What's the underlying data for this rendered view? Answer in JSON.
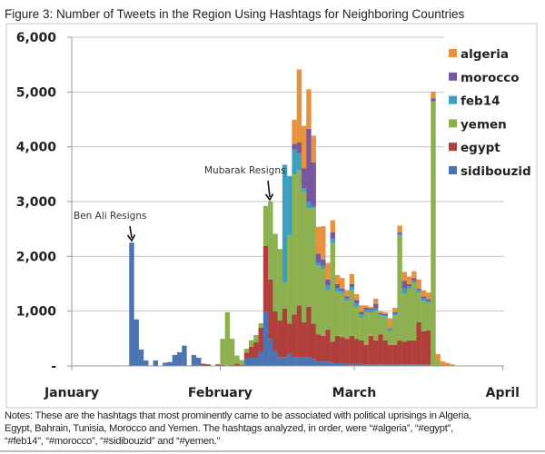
{
  "chart_data": {
    "type": "bar",
    "stacked": true,
    "title": "Figure 3: Number of Tweets in the Region Using Hashtags for Neighboring Countries",
    "xlabel": "",
    "ylabel": "",
    "ylim": [
      0,
      6000
    ],
    "y_ticks": [
      "-",
      "1,000",
      "2,000",
      "3,000",
      "4,000",
      "5,000",
      "6,000"
    ],
    "y_tick_values": [
      0,
      1000,
      2000,
      3000,
      4000,
      5000,
      6000
    ],
    "x_ticks": [
      "January",
      "February",
      "March",
      "April"
    ],
    "grid": "horizontal",
    "legend_position": "top-right",
    "legend_order": [
      "algeria",
      "morocco",
      "feb14",
      "yemen",
      "egypt",
      "sidibouzid"
    ],
    "x": [
      "Jan 13",
      "Jan 14",
      "Jan 15",
      "Jan 16",
      "Jan 17",
      "Jan 18",
      "Jan 19",
      "Jan 20",
      "Jan 21",
      "Jan 22",
      "Jan 23",
      "Jan 24",
      "Jan 25",
      "Jan 26",
      "Jan 27",
      "Jan 28",
      "Jan 29",
      "Jan 30",
      "Jan 31",
      "Feb 1",
      "Feb 2",
      "Feb 3",
      "Feb 4",
      "Feb 5",
      "Feb 6",
      "Feb 7",
      "Feb 8",
      "Feb 9",
      "Feb 10",
      "Feb 11",
      "Feb 12",
      "Feb 13",
      "Feb 14",
      "Feb 15",
      "Feb 16",
      "Feb 17",
      "Feb 18",
      "Feb 19",
      "Feb 20",
      "Feb 21",
      "Feb 22",
      "Feb 23",
      "Feb 24",
      "Feb 25",
      "Feb 26",
      "Feb 27",
      "Feb 28",
      "Mar 1",
      "Mar 2",
      "Mar 3",
      "Mar 4",
      "Mar 5",
      "Mar 6",
      "Mar 7",
      "Mar 8",
      "Mar 9",
      "Mar 10",
      "Mar 11",
      "Mar 12",
      "Mar 13",
      "Mar 14",
      "Mar 15",
      "Mar 16",
      "Mar 17",
      "Mar 18",
      "Mar 19",
      "Mar 20",
      "Mar 21"
    ],
    "series": [
      {
        "name": "sidibouzid",
        "color": "#4a74b4",
        "values": [
          2250,
          850,
          300,
          100,
          0,
          100,
          0,
          60,
          70,
          200,
          250,
          370,
          0,
          200,
          150,
          0,
          0,
          0,
          0,
          0,
          0,
          0,
          0,
          0,
          120,
          150,
          150,
          250,
          995,
          495,
          272,
          161,
          161,
          217,
          160,
          160,
          160,
          160,
          120,
          80,
          80,
          80,
          60,
          50,
          50,
          40,
          40,
          40,
          40,
          30,
          30,
          30,
          30,
          30,
          30,
          30,
          30,
          30,
          30,
          30,
          30,
          30,
          30,
          0,
          0,
          0,
          0,
          0
        ]
      },
      {
        "name": "egypt",
        "color": "#b03f3c",
        "values": [
          0,
          0,
          0,
          0,
          0,
          0,
          0,
          0,
          0,
          0,
          0,
          0,
          10,
          0,
          0,
          40,
          30,
          0,
          30,
          20,
          10,
          20,
          40,
          20,
          120,
          200,
          280,
          450,
          1193,
          1083,
          723,
          667,
          889,
          555,
          778,
          945,
          640,
          918,
          652,
          498,
          470,
          581,
          379,
          500,
          472,
          455,
          510,
          455,
          427,
          353,
          520,
          437,
          548,
          437,
          353,
          353,
          437,
          409,
          437,
          437,
          770,
          603,
          620,
          0,
          0,
          0,
          0,
          0
        ]
      },
      {
        "name": "yemen",
        "color": "#8db050",
        "values": [
          0,
          0,
          0,
          0,
          0,
          0,
          0,
          0,
          0,
          0,
          0,
          0,
          0,
          0,
          0,
          0,
          0,
          0,
          0,
          475,
          970,
          475,
          150,
          85,
          75,
          120,
          135,
          80,
          732,
          1427,
          1416,
          1305,
          462,
          1611,
          2557,
          2473,
          2388,
          1805,
          2111,
          1252,
          1222,
          722,
          1806,
          805,
          808,
          695,
          840,
          585,
          413,
          602,
          428,
          543,
          337,
          431,
          256,
          545,
          1920,
          880,
          950,
          1050,
          540,
          560,
          500,
          4828,
          100,
          0,
          0,
          0
        ]
      },
      {
        "name": "feb14",
        "color": "#3a9fc0",
        "values": [
          0,
          0,
          0,
          0,
          0,
          0,
          0,
          0,
          0,
          0,
          0,
          0,
          0,
          0,
          0,
          0,
          0,
          0,
          0,
          0,
          0,
          0,
          0,
          0,
          0,
          0,
          0,
          0,
          0,
          0,
          0,
          0,
          2160,
          1084,
          455,
          305,
          57,
          112,
          29,
          53,
          60,
          80,
          80,
          60,
          40,
          40,
          50,
          60,
          60,
          40,
          40,
          40,
          30,
          30,
          50,
          20,
          20,
          93,
          40,
          40,
          40,
          40,
          30,
          0,
          0,
          0,
          0,
          0
        ]
      },
      {
        "name": "morocco",
        "color": "#7657a0",
        "values": [
          0,
          0,
          0,
          0,
          0,
          0,
          0,
          0,
          0,
          0,
          0,
          0,
          0,
          0,
          0,
          0,
          0,
          0,
          0,
          0,
          0,
          0,
          0,
          0,
          0,
          0,
          0,
          0,
          0,
          0,
          0,
          0,
          0,
          0,
          100,
          195,
          360,
          1333,
          805,
          167,
          107,
          115,
          114,
          80,
          42,
          42,
          55,
          65,
          50,
          40,
          30,
          83,
          20,
          20,
          0,
          30,
          32,
          138,
          38,
          48,
          32,
          39,
          37,
          56,
          0,
          0,
          0,
          0
        ]
      },
      {
        "name": "algeria",
        "color": "#e8913e",
        "values": [
          0,
          0,
          0,
          0,
          0,
          0,
          0,
          0,
          0,
          0,
          0,
          0,
          0,
          0,
          0,
          0,
          0,
          0,
          0,
          0,
          0,
          0,
          0,
          0,
          0,
          0,
          0,
          0,
          0,
          0,
          0,
          0,
          0,
          0,
          445,
          1334,
          778,
          722,
          488,
          490,
          611,
          302,
          221,
          165,
          193,
          113,
          183,
          105,
          115,
          40,
          30,
          95,
          30,
          30,
          181,
          83,
          122,
          167,
          138,
          123,
          166,
          111,
          122,
          122,
          117,
          83,
          55,
          30
        ]
      }
    ],
    "annotations": [
      {
        "text": "Ben Ali Resigns",
        "x": "Jan 13"
      },
      {
        "text": "Mubarak Resigns",
        "x": "Feb 11"
      }
    ]
  },
  "notes": {
    "lines": [
      "Notes: These are the hashtags that most prominently came to be associated with political uprisings in Algeria,",
      "Egypt, Bahrain, Tunisia, Morocco and Yemen. The hashtags analyzed, in order, were “#algeria”, “#egypt”,",
      "“#feb14”, “#morocco”, “#sidibouzid” and “#yemen.”"
    ]
  }
}
